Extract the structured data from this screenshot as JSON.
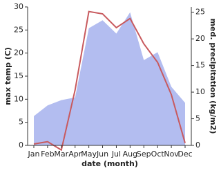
{
  "chart_data": {
    "type": "area-line",
    "xlabel": "date (month)",
    "ylabel": "max temp (C)",
    "y2label": "med. precipitation (kg/m2)",
    "categories": [
      "Jan",
      "Feb",
      "Mar",
      "Apr",
      "May",
      "Jun",
      "Jul",
      "Aug",
      "Sep",
      "Oct",
      "Nov",
      "Dec"
    ],
    "series": [
      {
        "name": "med. precipitation",
        "type": "area",
        "axis": "y2",
        "color": "#b3bdf0",
        "values": [
          5.5,
          7.5,
          8.5,
          9,
          22,
          23.5,
          21,
          25,
          16,
          17.5,
          11,
          8
        ]
      },
      {
        "name": "max temp",
        "type": "line",
        "color": "#c85a5e",
        "values": [
          0.3,
          0.8,
          -1,
          12,
          29,
          28.5,
          25.5,
          27.5,
          22,
          18,
          11,
          0.5
        ]
      }
    ],
    "ylim": [
      0,
      30
    ],
    "yticks": [
      0,
      5,
      10,
      15,
      20,
      25,
      30
    ],
    "y2lim": [
      0,
      26
    ],
    "y2ticks": [
      0,
      5,
      10,
      15,
      20,
      25
    ]
  }
}
